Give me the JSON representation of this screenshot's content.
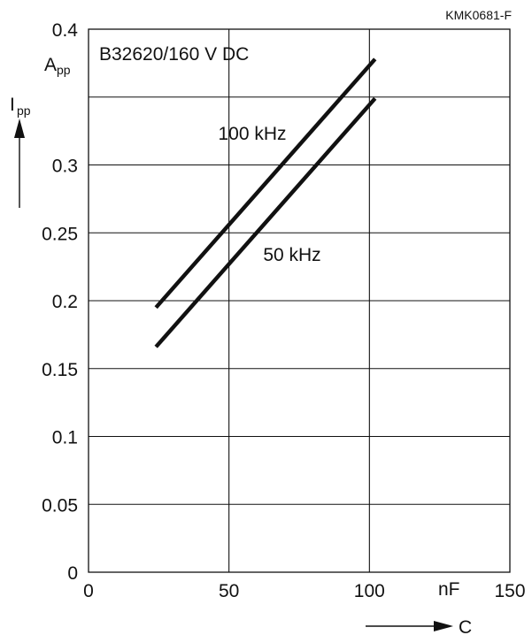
{
  "chart_data": {
    "type": "line",
    "doc_code": "KMK0681-F",
    "title": "B32620/160 V DC",
    "ylabel_main": "I",
    "ylabel_sub": "pp",
    "yunit_main": "A",
    "yunit_sub": "pp",
    "xunit": "nF",
    "xlabel": "C",
    "xlim": [
      0,
      150
    ],
    "ylim": [
      0,
      0.4
    ],
    "xticks": [
      "0",
      "50",
      "100",
      "150"
    ],
    "yticks": [
      "0",
      "0.05",
      "0.1",
      "0.15",
      "0.2",
      "0.25",
      "0.3",
      "0.4"
    ],
    "grid": true,
    "series": [
      {
        "name": "100 kHz",
        "x": [
          24,
          102
        ],
        "y": [
          0.195,
          0.378
        ]
      },
      {
        "name": "50 kHz",
        "x": [
          24,
          102
        ],
        "y": [
          0.166,
          0.349
        ]
      }
    ]
  }
}
